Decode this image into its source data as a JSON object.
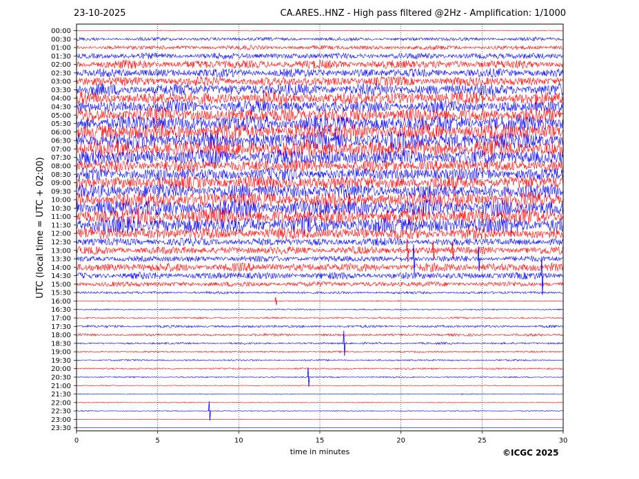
{
  "header": {
    "date": "23-10-2025",
    "title": "CA.ARES..HNZ - High pass filtered @2Hz - Amplification: 1/1000"
  },
  "credit": "©ICGC 2025",
  "colors": {
    "series_a": "#0000ff",
    "series_b": "#ff0000",
    "grid": "#000000",
    "axis": "#000000"
  },
  "chart_data": {
    "type": "line",
    "subtype": "helicorder",
    "xlabel": "time in minutes",
    "ylabel": "UTC (local time = UTC + 02:00)",
    "xlim": [
      0,
      30
    ],
    "xticks": [
      0,
      5,
      10,
      15,
      20,
      25,
      30
    ],
    "grid": "vertical dotted lines at 5-minute intervals",
    "rows": [
      {
        "label": "00:00",
        "color": "red",
        "amplitude": 0.05
      },
      {
        "label": "00:30",
        "color": "blue",
        "amplitude": 0.2
      },
      {
        "label": "01:00",
        "color": "red",
        "amplitude": 0.25
      },
      {
        "label": "01:30",
        "color": "blue",
        "amplitude": 0.35
      },
      {
        "label": "02:00",
        "color": "red",
        "amplitude": 0.5
      },
      {
        "label": "02:30",
        "color": "blue",
        "amplitude": 0.5
      },
      {
        "label": "03:00",
        "color": "red",
        "amplitude": 0.55
      },
      {
        "label": "03:30",
        "color": "blue",
        "amplitude": 0.7
      },
      {
        "label": "04:00",
        "color": "red",
        "amplitude": 0.75
      },
      {
        "label": "04:30",
        "color": "blue",
        "amplitude": 0.7
      },
      {
        "label": "05:00",
        "color": "red",
        "amplitude": 0.85
      },
      {
        "label": "05:30",
        "color": "blue",
        "amplitude": 0.95
      },
      {
        "label": "06:00",
        "color": "red",
        "amplitude": 1.0
      },
      {
        "label": "06:30",
        "color": "blue",
        "amplitude": 1.0
      },
      {
        "label": "07:00",
        "color": "red",
        "amplitude": 1.0
      },
      {
        "label": "07:30",
        "color": "blue",
        "amplitude": 0.9
      },
      {
        "label": "08:00",
        "color": "red",
        "amplitude": 0.75
      },
      {
        "label": "08:30",
        "color": "blue",
        "amplitude": 0.75
      },
      {
        "label": "09:00",
        "color": "red",
        "amplitude": 0.8
      },
      {
        "label": "09:30",
        "color": "blue",
        "amplitude": 0.85
      },
      {
        "label": "10:00",
        "color": "red",
        "amplitude": 0.9
      },
      {
        "label": "10:30",
        "color": "blue",
        "amplitude": 0.95
      },
      {
        "label": "11:00",
        "color": "red",
        "amplitude": 0.95
      },
      {
        "label": "11:30",
        "color": "blue",
        "amplitude": 0.95
      },
      {
        "label": "12:00",
        "color": "red",
        "amplitude": 0.7
      },
      {
        "label": "12:30",
        "color": "blue",
        "amplitude": 0.45
      },
      {
        "label": "13:00",
        "color": "red",
        "amplitude": 0.45
      },
      {
        "label": "13:30",
        "color": "blue",
        "amplitude": 0.35
      },
      {
        "label": "14:00",
        "color": "red",
        "amplitude": 0.5
      },
      {
        "label": "14:30",
        "color": "blue",
        "amplitude": 0.4
      },
      {
        "label": "15:00",
        "color": "red",
        "amplitude": 0.3
      },
      {
        "label": "15:30",
        "color": "blue",
        "amplitude": 0.15
      },
      {
        "label": "16:00",
        "color": "red",
        "amplitude": 0.06
      },
      {
        "label": "16:30",
        "color": "blue",
        "amplitude": 0.08
      },
      {
        "label": "17:00",
        "color": "red",
        "amplitude": 0.1
      },
      {
        "label": "17:30",
        "color": "blue",
        "amplitude": 0.15
      },
      {
        "label": "18:00",
        "color": "red",
        "amplitude": 0.15
      },
      {
        "label": "18:30",
        "color": "blue",
        "amplitude": 0.12
      },
      {
        "label": "19:00",
        "color": "red",
        "amplitude": 0.1
      },
      {
        "label": "19:30",
        "color": "blue",
        "amplitude": 0.1
      },
      {
        "label": "20:00",
        "color": "red",
        "amplitude": 0.1
      },
      {
        "label": "20:30",
        "color": "blue",
        "amplitude": 0.08
      },
      {
        "label": "21:00",
        "color": "red",
        "amplitude": 0.05
      },
      {
        "label": "21:30",
        "color": "blue",
        "amplitude": 0.05
      },
      {
        "label": "22:00",
        "color": "red",
        "amplitude": 0.05
      },
      {
        "label": "22:30",
        "color": "blue",
        "amplitude": 0.06
      },
      {
        "label": "23:00",
        "color": "red",
        "amplitude": 0.03
      },
      {
        "label": "23:30",
        "color": "blue",
        "amplitude": 0.0
      }
    ],
    "spikes": [
      {
        "row": "13:00",
        "minute": 20.4,
        "amplitude": 1.2
      },
      {
        "row": "13:00",
        "minute": 22.0,
        "amplitude": 1.0
      },
      {
        "row": "13:00",
        "minute": 23.2,
        "amplitude": 0.9
      },
      {
        "row": "13:30",
        "minute": 20.8,
        "amplitude": 1.5
      },
      {
        "row": "13:30",
        "minute": 24.8,
        "amplitude": 1.3
      },
      {
        "row": "14:30",
        "minute": 28.7,
        "amplitude": 2.0
      },
      {
        "row": "18:30",
        "minute": 16.5,
        "amplitude": 1.3
      },
      {
        "row": "20:30",
        "minute": 14.3,
        "amplitude": 1.0
      },
      {
        "row": "22:30",
        "minute": 8.2,
        "amplitude": 1.0
      },
      {
        "row": "16:00",
        "minute": 12.3,
        "amplitude": 0.4
      }
    ]
  }
}
